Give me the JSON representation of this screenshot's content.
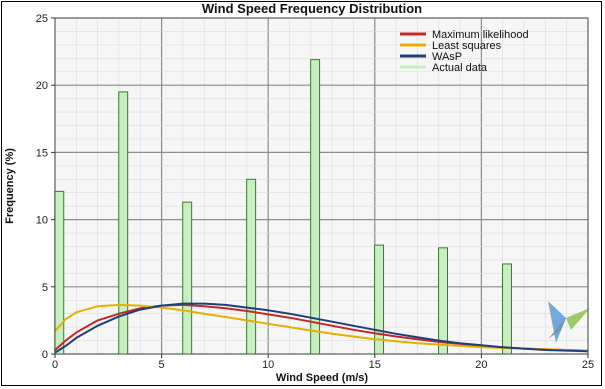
{
  "chart_data": {
    "type": "bar",
    "title": "Wind Speed Frequency Distribution",
    "xlabel": "Wind Speed (m/s)",
    "ylabel": "Frequency (%)",
    "xlim": [
      0,
      25
    ],
    "ylim": [
      0,
      25
    ],
    "x_ticks": [
      0,
      5,
      10,
      15,
      20,
      25
    ],
    "y_ticks": [
      0,
      5,
      10,
      15,
      20,
      25
    ],
    "grid": true,
    "legend_position": "top-right",
    "bars": {
      "name": "Actual data",
      "color": "#c8efc0",
      "edge_color": "#3a7a2c",
      "x": [
        0.2,
        3.2,
        6.2,
        9.2,
        12.2,
        15.2,
        18.2,
        21.2
      ],
      "values": [
        12.1,
        19.5,
        11.3,
        13.0,
        21.9,
        8.1,
        7.9,
        6.7
      ]
    },
    "series": [
      {
        "name": "Maximum likelihood",
        "color": "#c62828",
        "x": [
          0,
          0.5,
          1,
          2,
          3,
          4,
          5,
          6,
          7,
          8,
          9,
          10,
          11,
          12,
          13,
          14,
          15,
          16,
          17,
          18,
          19,
          20,
          21,
          22,
          23,
          24,
          25
        ],
        "values": [
          0.3,
          1.0,
          1.6,
          2.5,
          3.0,
          3.4,
          3.6,
          3.65,
          3.55,
          3.4,
          3.2,
          2.95,
          2.7,
          2.4,
          2.1,
          1.8,
          1.55,
          1.3,
          1.1,
          0.9,
          0.75,
          0.6,
          0.5,
          0.4,
          0.35,
          0.3,
          0.25
        ]
      },
      {
        "name": "Least squares",
        "color": "#e6b000",
        "x": [
          0,
          0.5,
          1,
          2,
          3,
          4,
          5,
          6,
          7,
          8,
          9,
          10,
          11,
          12,
          13,
          14,
          15,
          16,
          17,
          18,
          19,
          20,
          21,
          22,
          23,
          24,
          25
        ],
        "values": [
          1.7,
          2.6,
          3.1,
          3.55,
          3.65,
          3.6,
          3.45,
          3.25,
          3.0,
          2.75,
          2.5,
          2.25,
          2.0,
          1.75,
          1.5,
          1.3,
          1.1,
          0.95,
          0.8,
          0.7,
          0.6,
          0.5,
          0.45,
          0.4,
          0.35,
          0.3,
          0.25
        ]
      },
      {
        "name": "WAsP",
        "color": "#1f3f7a",
        "x": [
          0,
          0.5,
          1,
          2,
          3,
          4,
          5,
          6,
          7,
          8,
          9,
          10,
          11,
          12,
          13,
          14,
          15,
          16,
          17,
          18,
          19,
          20,
          21,
          22,
          23,
          24,
          25
        ],
        "values": [
          0.1,
          0.6,
          1.2,
          2.1,
          2.8,
          3.3,
          3.6,
          3.75,
          3.75,
          3.65,
          3.45,
          3.25,
          3.0,
          2.7,
          2.4,
          2.1,
          1.8,
          1.5,
          1.25,
          1.0,
          0.8,
          0.65,
          0.5,
          0.4,
          0.3,
          0.25,
          0.2
        ]
      }
    ],
    "legend": [
      {
        "label": "Maximum likelihood",
        "color": "#c62828"
      },
      {
        "label": "Least squares",
        "color": "#e6b000"
      },
      {
        "label": "WAsP",
        "color": "#1f3f7a"
      },
      {
        "label": "Actual data",
        "color": "#c8efc0"
      }
    ],
    "plot_background": "#f6f6f6",
    "grid_minor_color": "#dcdcdc",
    "grid_major_color": "#8c8c8c"
  },
  "logo": {
    "icon_name": "wind-turbine-logo-icon",
    "colors": [
      "#5c9bd6",
      "#8bc34a",
      "#7f8c9a"
    ]
  }
}
